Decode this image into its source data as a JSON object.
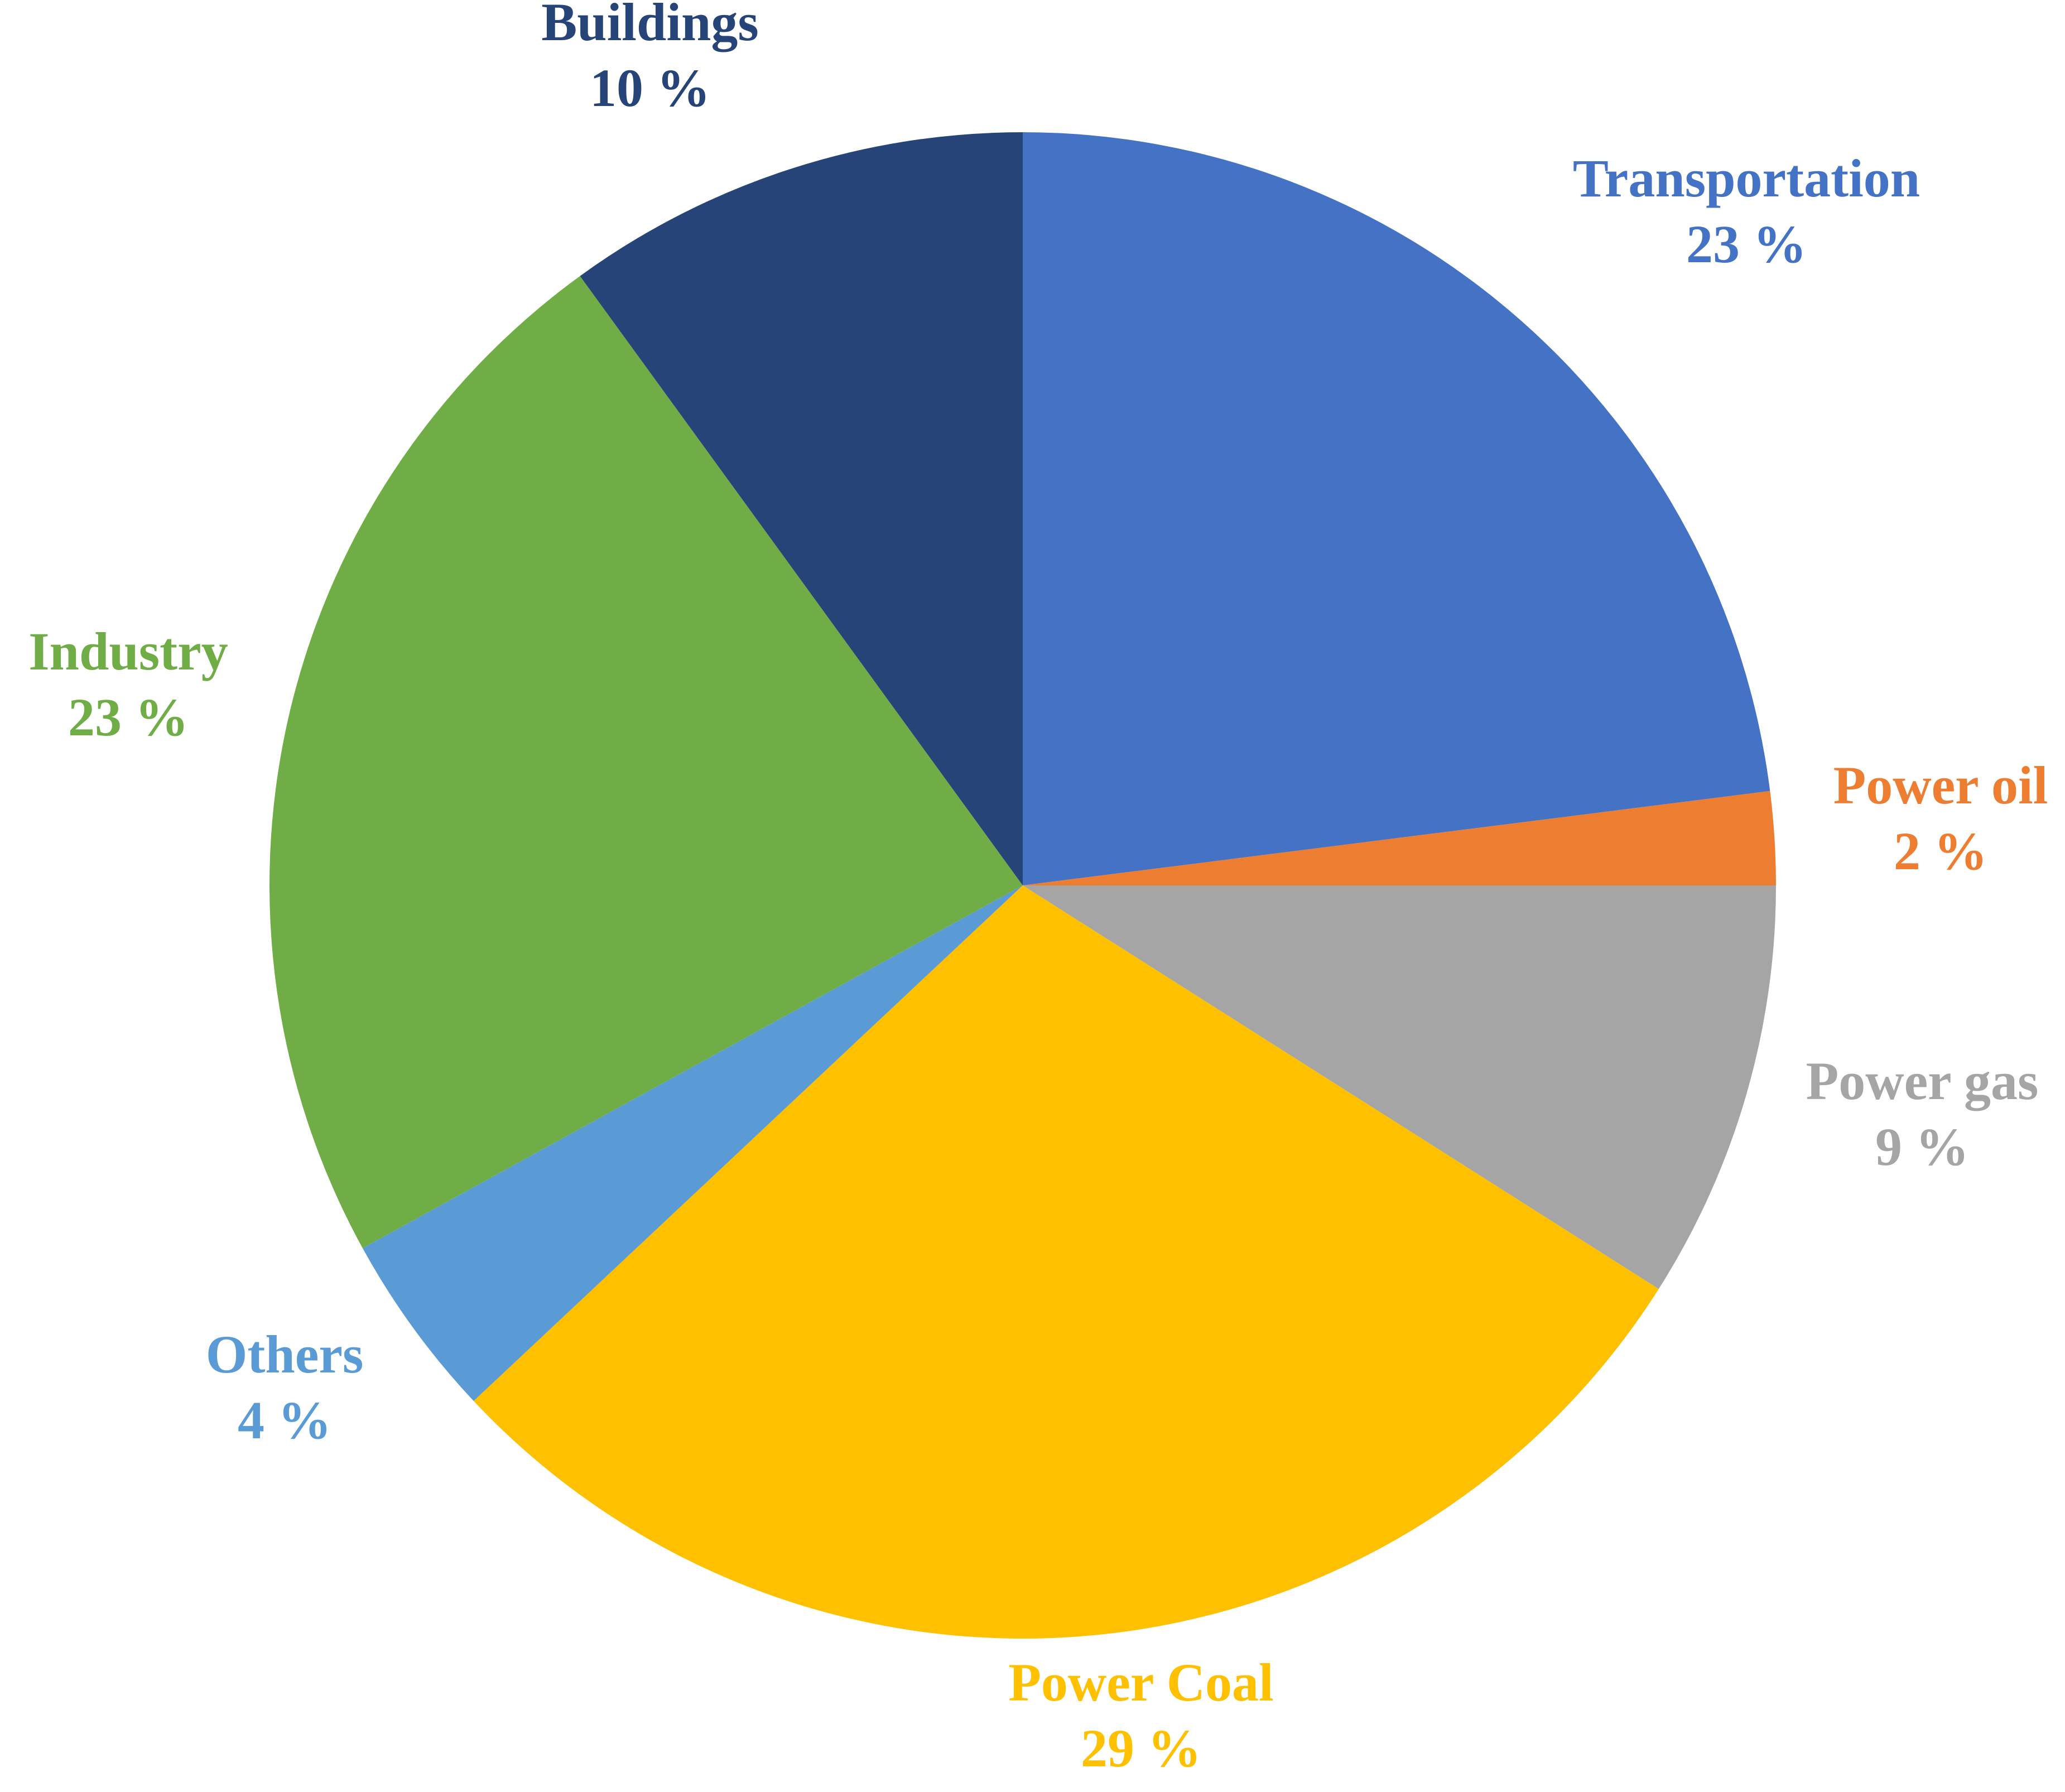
{
  "chart_data": {
    "type": "pie",
    "title": "",
    "slices": [
      {
        "label": "Transportation",
        "value": 23,
        "value_label": "23 %",
        "color": "#4472C4"
      },
      {
        "label": "Power oil",
        "value": 2,
        "value_label": "2 %",
        "color": "#ED7D31"
      },
      {
        "label": "Power gas",
        "value": 9,
        "value_label": "9 %",
        "color": "#A5A5A5"
      },
      {
        "label": "Power Coal",
        "value": 29,
        "value_label": "29 %",
        "color": "#FFC000"
      },
      {
        "label": "Others",
        "value": 4,
        "value_label": "4 %",
        "color": "#5B9BD5"
      },
      {
        "label": "Industry",
        "value": 23,
        "value_label": "23 %",
        "color": "#70AD47"
      },
      {
        "label": "Buildings",
        "value": 10,
        "value_label": "10 %",
        "color": "#264478"
      }
    ],
    "start_angle": "12 o'clock",
    "direction": "clockwise",
    "legend": "none",
    "data_labels": "outside"
  }
}
